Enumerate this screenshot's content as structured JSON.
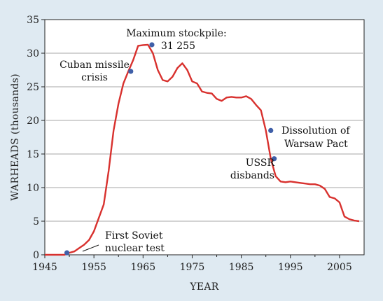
{
  "chart_data": {
    "type": "line",
    "title": "",
    "xlabel": "YEAR",
    "ylabel": "WARHEADS (thousands)",
    "xlim": [
      1945,
      2010
    ],
    "ylim": [
      0,
      35
    ],
    "x_ticks": [
      1945,
      1955,
      1965,
      1975,
      1985,
      1995,
      2005
    ],
    "y_ticks": [
      0,
      5,
      10,
      15,
      20,
      25,
      30,
      35
    ],
    "grid": "horizontal",
    "line_color": "#d8312e",
    "marker_color": "#3f5fa8",
    "background_color": "#dfeaf2",
    "plot_background_color": "#ffffff",
    "series": [
      {
        "x": [
          1945,
          1949,
          1950,
          1951,
          1952,
          1953,
          1954,
          1955,
          1956,
          1957,
          1958,
          1959,
          1960,
          1961,
          1962,
          1963,
          1964,
          1965,
          1966,
          1967,
          1968,
          1969,
          1970,
          1971,
          1972,
          1973,
          1974,
          1975,
          1976,
          1977,
          1978,
          1979,
          1980,
          1981,
          1982,
          1983,
          1984,
          1985,
          1986,
          1987,
          1988,
          1989,
          1990,
          1991,
          1992,
          1993,
          1994,
          1995,
          1996,
          1997,
          1998,
          1999,
          2000,
          2001,
          2002,
          2003,
          2004,
          2005,
          2006,
          2007,
          2008,
          2009
        ],
        "y": [
          0,
          0,
          0.3,
          0.5,
          1.0,
          1.5,
          2.2,
          3.5,
          5.5,
          7.5,
          12.5,
          18.5,
          22.5,
          25.5,
          27.3,
          29.0,
          31.1,
          31.2,
          31.255,
          30.0,
          27.5,
          26.0,
          25.8,
          26.5,
          27.8,
          28.5,
          27.5,
          25.8,
          25.5,
          24.3,
          24.1,
          24.0,
          23.2,
          22.9,
          23.4,
          23.5,
          23.4,
          23.4,
          23.6,
          23.2,
          22.3,
          21.5,
          18.5,
          14.3,
          11.7,
          10.9,
          10.8,
          10.9,
          10.8,
          10.7,
          10.6,
          10.5,
          10.5,
          10.3,
          9.8,
          8.6,
          8.4,
          7.8,
          5.7,
          5.3,
          5.1,
          5.0
        ]
      }
    ],
    "events": [
      {
        "x": 1949.5,
        "y": 0.3,
        "label_lines": [
          "First Soviet",
          "nuclear test"
        ]
      },
      {
        "x": 1962.5,
        "y": 27.3,
        "label_lines": [
          "Cuban missile",
          "crisis"
        ]
      },
      {
        "x": 1966.8,
        "y": 31.255,
        "label_lines": [
          "Maximum stockpile:",
          "31 255"
        ]
      },
      {
        "x": 1991.0,
        "y": 18.5,
        "label_lines": [
          "Dissolution of",
          "Warsaw Pact"
        ]
      },
      {
        "x": 1991.7,
        "y": 14.3,
        "label_lines": [
          "USSR",
          "disbands"
        ]
      }
    ]
  }
}
